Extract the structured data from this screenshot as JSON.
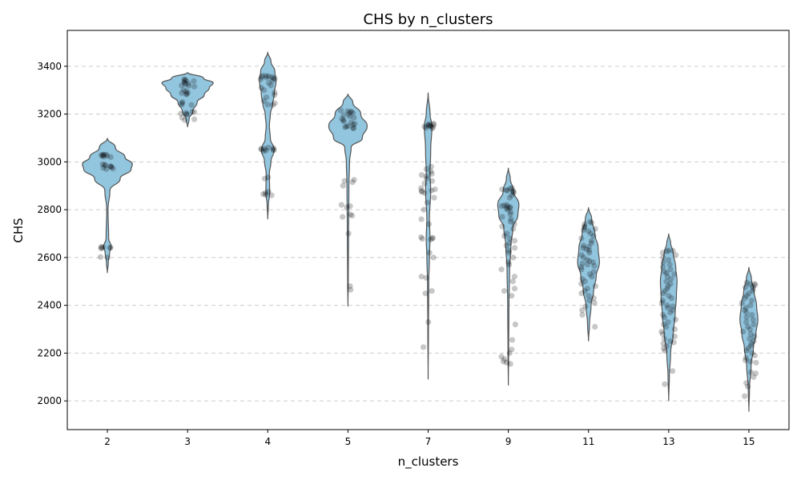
{
  "chart_data": {
    "type": "violin",
    "title": "CHS by n_clusters",
    "xlabel": "n_clusters",
    "ylabel": "CHS",
    "ylim": [
      1880,
      3550
    ],
    "yticks": [
      2000,
      2200,
      2400,
      2600,
      2800,
      3000,
      3200,
      3400
    ],
    "categories": [
      "2",
      "3",
      "4",
      "5",
      "7",
      "9",
      "11",
      "13",
      "15"
    ],
    "grid": "horizontal dashed",
    "colors": {
      "violin_fill": "#92c5de",
      "violin_edge": "#555555",
      "point": "#000000",
      "grid": "#cccccc"
    },
    "series": [
      {
        "category": "2",
        "violin": {
          "min": 2535,
          "max": 3100,
          "half_width": [
            [
              2535,
              0.0
            ],
            [
              2580,
              0.03
            ],
            [
              2620,
              0.07
            ],
            [
              2645,
              0.12
            ],
            [
              2680,
              0.04
            ],
            [
              2800,
              0.02
            ],
            [
              2880,
              0.08
            ],
            [
              2930,
              0.4
            ],
            [
              2970,
              0.74
            ],
            [
              2990,
              0.78
            ],
            [
              3020,
              0.55
            ],
            [
              3060,
              0.25
            ],
            [
              3100,
              0.0
            ]
          ]
        },
        "points": [
          3030,
          3030,
          3030,
          3028,
          3025,
          3025,
          3022,
          3020,
          2990,
          2988,
          2985,
          2982,
          2980,
          2978,
          2975,
          2972,
          2970,
          2645,
          2643,
          2642,
          2640,
          2640,
          2638,
          2600,
          2602
        ]
      },
      {
        "category": "3",
        "violin": {
          "min": 3145,
          "max": 3375,
          "half_width": [
            [
              3145,
              0.0
            ],
            [
              3180,
              0.05
            ],
            [
              3210,
              0.16
            ],
            [
              3250,
              0.3
            ],
            [
              3280,
              0.52
            ],
            [
              3310,
              0.68
            ],
            [
              3330,
              0.8
            ],
            [
              3350,
              0.5
            ],
            [
              3375,
              0.0
            ]
          ]
        },
        "points": [
          3345,
          3343,
          3340,
          3338,
          3335,
          3330,
          3328,
          3325,
          3320,
          3318,
          3315,
          3300,
          3295,
          3290,
          3288,
          3285,
          3282,
          3250,
          3245,
          3240,
          3238,
          3210,
          3208,
          3205,
          3202,
          3200,
          3198,
          3185,
          3178,
          3175
        ]
      },
      {
        "category": "4",
        "violin": {
          "min": 2760,
          "max": 3460,
          "half_width": [
            [
              2760,
              0.0
            ],
            [
              2820,
              0.02
            ],
            [
              2870,
              0.06
            ],
            [
              2950,
              0.05
            ],
            [
              3000,
              0.1
            ],
            [
              3050,
              0.2
            ],
            [
              3100,
              0.08
            ],
            [
              3150,
              0.05
            ],
            [
              3200,
              0.08
            ],
            [
              3240,
              0.15
            ],
            [
              3280,
              0.2
            ],
            [
              3340,
              0.26
            ],
            [
              3380,
              0.22
            ],
            [
              3420,
              0.1
            ],
            [
              3460,
              0.0
            ]
          ]
        },
        "points": [
          3360,
          3360,
          3358,
          3355,
          3355,
          3352,
          3350,
          3348,
          3345,
          3340,
          3330,
          3320,
          3310,
          3300,
          3290,
          3280,
          3270,
          3255,
          3245,
          3240,
          3238,
          3060,
          3058,
          3055,
          3055,
          3052,
          3050,
          3050,
          3048,
          3045,
          2935,
          2930,
          2875,
          2870,
          2865,
          2862,
          2860
        ]
      },
      {
        "category": "5",
        "violin": {
          "min": 2395,
          "max": 3285,
          "half_width": [
            [
              2395,
              0.0
            ],
            [
              2500,
              0.01
            ],
            [
              2700,
              0.02
            ],
            [
              2900,
              0.03
            ],
            [
              3000,
              0.05
            ],
            [
              3060,
              0.1
            ],
            [
              3100,
              0.45
            ],
            [
              3150,
              0.6
            ],
            [
              3200,
              0.4
            ],
            [
              3250,
              0.15
            ],
            [
              3285,
              0.0
            ]
          ]
        },
        "points": [
          3215,
          3212,
          3210,
          3208,
          3205,
          3200,
          3195,
          3190,
          3185,
          3180,
          3175,
          3170,
          3165,
          3160,
          3155,
          3150,
          3148,
          3145,
          3142,
          3140,
          2925,
          2920,
          2915,
          2900,
          2820,
          2815,
          2810,
          2780,
          2775,
          2770,
          2700,
          2480,
          2465
        ]
      },
      {
        "category": "7",
        "violin": {
          "min": 2090,
          "max": 3290,
          "half_width": [
            [
              2090,
              0.0
            ],
            [
              2300,
              0.01
            ],
            [
              2500,
              0.02
            ],
            [
              2600,
              0.04
            ],
            [
              2680,
              0.06
            ],
            [
              2760,
              0.04
            ],
            [
              2880,
              0.08
            ],
            [
              2950,
              0.06
            ],
            [
              3050,
              0.08
            ],
            [
              3150,
              0.12
            ],
            [
              3200,
              0.06
            ],
            [
              3290,
              0.0
            ]
          ]
        },
        "points": [
          3160,
          3158,
          3155,
          3155,
          3152,
          3150,
          3150,
          3148,
          3145,
          3142,
          3140,
          2980,
          2970,
          2960,
          2950,
          2945,
          2940,
          2930,
          2920,
          2910,
          2890,
          2885,
          2880,
          2878,
          2875,
          2870,
          2850,
          2830,
          2800,
          2760,
          2740,
          2685,
          2682,
          2680,
          2678,
          2675,
          2620,
          2600,
          2520,
          2515,
          2460,
          2450,
          2330,
          2225
        ]
      },
      {
        "category": "9",
        "violin": {
          "min": 2065,
          "max": 2975,
          "half_width": [
            [
              2065,
              0.0
            ],
            [
              2200,
              0.01
            ],
            [
              2400,
              0.02
            ],
            [
              2550,
              0.04
            ],
            [
              2650,
              0.08
            ],
            [
              2720,
              0.14
            ],
            [
              2780,
              0.3
            ],
            [
              2820,
              0.33
            ],
            [
              2880,
              0.16
            ],
            [
              2930,
              0.06
            ],
            [
              2975,
              0.0
            ]
          ]
        },
        "points": [
          2890,
          2888,
          2885,
          2882,
          2880,
          2878,
          2875,
          2870,
          2860,
          2850,
          2820,
          2818,
          2815,
          2812,
          2810,
          2808,
          2805,
          2800,
          2790,
          2780,
          2770,
          2760,
          2750,
          2740,
          2730,
          2720,
          2700,
          2690,
          2680,
          2670,
          2660,
          2650,
          2640,
          2630,
          2620,
          2600,
          2580,
          2570,
          2550,
          2520,
          2500,
          2470,
          2460,
          2440,
          2320,
          2255,
          2215,
          2200,
          2185,
          2175,
          2165,
          2160,
          2155
        ]
      },
      {
        "category": "11",
        "violin": {
          "min": 2250,
          "max": 2810,
          "half_width": [
            [
              2250,
              0.0
            ],
            [
              2320,
              0.03
            ],
            [
              2400,
              0.08
            ],
            [
              2460,
              0.16
            ],
            [
              2520,
              0.24
            ],
            [
              2580,
              0.34
            ],
            [
              2640,
              0.3
            ],
            [
              2700,
              0.2
            ],
            [
              2760,
              0.1
            ],
            [
              2810,
              0.0
            ]
          ]
        },
        "points": [
          2750,
          2745,
          2740,
          2730,
          2725,
          2720,
          2715,
          2710,
          2700,
          2690,
          2680,
          2670,
          2660,
          2650,
          2645,
          2640,
          2635,
          2630,
          2620,
          2610,
          2600,
          2590,
          2585,
          2580,
          2575,
          2570,
          2565,
          2560,
          2550,
          2540,
          2530,
          2520,
          2510,
          2500,
          2490,
          2480,
          2470,
          2460,
          2450,
          2440,
          2430,
          2420,
          2410,
          2395,
          2380,
          2360,
          2310
        ]
      },
      {
        "category": "13",
        "violin": {
          "min": 2000,
          "max": 2700,
          "half_width": [
            [
              2000,
              0.0
            ],
            [
              2100,
              0.02
            ],
            [
              2200,
              0.06
            ],
            [
              2280,
              0.14
            ],
            [
              2360,
              0.2
            ],
            [
              2440,
              0.24
            ],
            [
              2500,
              0.26
            ],
            [
              2560,
              0.22
            ],
            [
              2620,
              0.14
            ],
            [
              2660,
              0.06
            ],
            [
              2700,
              0.0
            ]
          ]
        },
        "points": [
          2630,
          2628,
          2625,
          2620,
          2610,
          2600,
          2590,
          2580,
          2570,
          2560,
          2550,
          2540,
          2535,
          2530,
          2520,
          2510,
          2500,
          2490,
          2480,
          2470,
          2460,
          2450,
          2440,
          2430,
          2420,
          2410,
          2400,
          2395,
          2390,
          2380,
          2370,
          2360,
          2350,
          2340,
          2330,
          2320,
          2310,
          2300,
          2290,
          2280,
          2270,
          2260,
          2250,
          2245,
          2240,
          2230,
          2220,
          2210,
          2125,
          2070
        ]
      },
      {
        "category": "15",
        "violin": {
          "min": 1955,
          "max": 2560,
          "half_width": [
            [
              1955,
              0.0
            ],
            [
              2050,
              0.02
            ],
            [
              2150,
              0.07
            ],
            [
              2220,
              0.14
            ],
            [
              2280,
              0.22
            ],
            [
              2340,
              0.28
            ],
            [
              2400,
              0.24
            ],
            [
              2460,
              0.16
            ],
            [
              2510,
              0.08
            ],
            [
              2560,
              0.0
            ]
          ]
        },
        "points": [
          2495,
          2490,
          2488,
          2485,
          2480,
          2475,
          2470,
          2460,
          2450,
          2440,
          2430,
          2420,
          2410,
          2400,
          2390,
          2380,
          2370,
          2360,
          2350,
          2340,
          2330,
          2320,
          2310,
          2300,
          2290,
          2280,
          2270,
          2260,
          2250,
          2240,
          2230,
          2220,
          2210,
          2200,
          2190,
          2180,
          2170,
          2165,
          2160,
          2120,
          2115,
          2100,
          2075,
          2060,
          2020
        ]
      }
    ]
  }
}
